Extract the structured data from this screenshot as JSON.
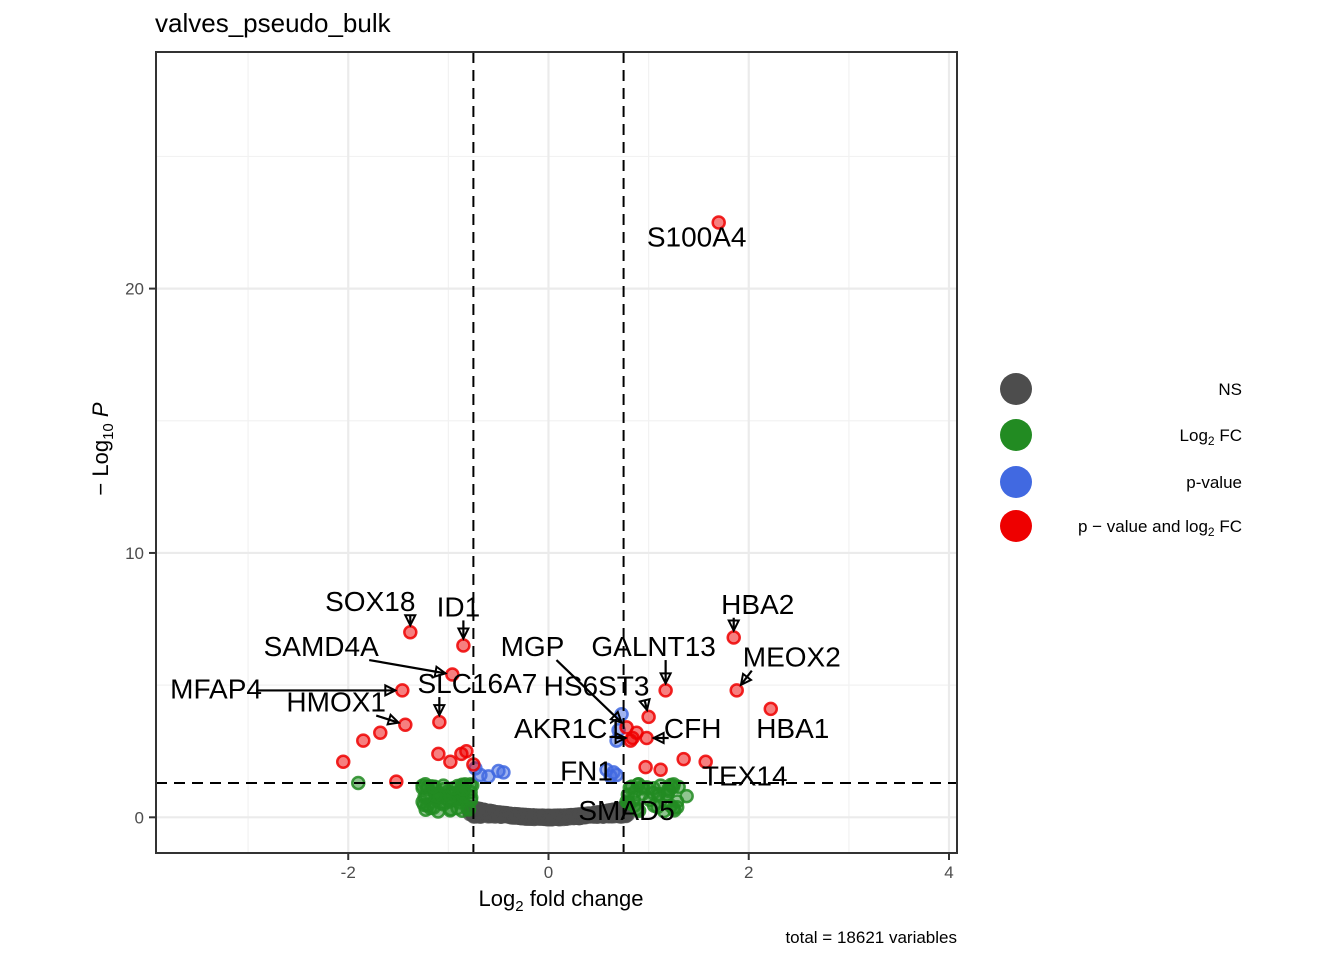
{
  "chart_data": {
    "type": "scatter",
    "title": "valves_pseudo_bulk",
    "caption": "total = 18621 variables",
    "x_axis": {
      "label_parts": [
        "Log",
        "2",
        " fold change"
      ],
      "ticks": [
        -2,
        0,
        2,
        4
      ],
      "tick_labels": [
        "-2",
        "0",
        "2",
        "4"
      ],
      "range": [
        -3.92,
        4.08
      ]
    },
    "y_axis": {
      "label_parts": [
        "− Log",
        "10",
        " P"
      ],
      "ticks": [
        0,
        10,
        20
      ],
      "tick_labels": [
        "0",
        "10",
        "20"
      ],
      "range": [
        -1.35,
        28.95
      ]
    },
    "grid": true,
    "cutoffs": {
      "fc": [
        -0.75,
        0.75
      ],
      "p": 1.3
    },
    "colors": {
      "NS": "#4d4d4d",
      "FC": "#228b22",
      "P": "#4169e1",
      "PFC": "#ee0000"
    },
    "legend": {
      "position": "right",
      "entries": [
        {
          "key": "NS",
          "color": "#4d4d4d",
          "parts": [
            "NS"
          ]
        },
        {
          "key": "FC",
          "color": "#228b22",
          "parts": [
            "Log",
            "2",
            " FC"
          ]
        },
        {
          "key": "P",
          "color": "#4169e1",
          "parts": [
            "p-value"
          ]
        },
        {
          "key": "PFC",
          "color": "#ee0000",
          "parts": [
            "p − value and log",
            "2",
            " FC"
          ]
        }
      ]
    },
    "labeled_genes": [
      {
        "gene": "S100A4",
        "x": 1.7,
        "y": 22.5,
        "lx": 1.48,
        "ly": 21.6
      },
      {
        "gene": "SOX18",
        "x": -1.38,
        "y": 7.0,
        "lx": -1.78,
        "ly": 7.8
      },
      {
        "gene": "ID1",
        "x": -0.85,
        "y": 6.5,
        "lx": -0.9,
        "ly": 7.6
      },
      {
        "gene": "SAMD4A",
        "x": -0.96,
        "y": 5.4,
        "lx": -2.27,
        "ly": 6.1
      },
      {
        "gene": "MFAP4",
        "x": -1.46,
        "y": 4.8,
        "lx": -3.32,
        "ly": 4.5
      },
      {
        "gene": "HMOX1",
        "x": -1.43,
        "y": 3.5,
        "lx": -2.12,
        "ly": 4.0
      },
      {
        "gene": "SLC16A7",
        "x": -1.09,
        "y": 3.6,
        "lx": -0.71,
        "ly": 4.7
      },
      {
        "gene": "HBA2",
        "x": 1.85,
        "y": 6.8,
        "lx": 2.09,
        "ly": 7.7
      },
      {
        "gene": "MEOX2",
        "x": 1.88,
        "y": 4.8,
        "lx": 2.43,
        "ly": 5.7
      },
      {
        "gene": "HBA1",
        "x": 2.22,
        "y": 4.1,
        "lx": 2.44,
        "ly": 3.0
      },
      {
        "gene": "MGP",
        "x": 0.78,
        "y": 3.4,
        "lx": -0.16,
        "ly": 6.1
      },
      {
        "gene": "GALNT13",
        "x": 1.17,
        "y": 4.8,
        "lx": 1.05,
        "ly": 6.1
      },
      {
        "gene": "HS6ST3",
        "x": 1.0,
        "y": 3.8,
        "lx": 0.48,
        "ly": 4.6
      },
      {
        "gene": "AKR1C1",
        "x": 0.84,
        "y": 3.0,
        "lx": 0.2,
        "ly": 3.0
      },
      {
        "gene": "CFH",
        "x": 0.98,
        "y": 3.0,
        "lx": 1.44,
        "ly": 3.0
      },
      {
        "gene": "TEX14",
        "x": 1.57,
        "y": 2.1,
        "lx": 1.96,
        "ly": 1.2
      },
      {
        "gene": "FN1",
        "x": 0.68,
        "y": 1.6,
        "lx": 0.38,
        "ly": 1.4
      },
      {
        "gene": "SMAD5",
        "x": 0.78,
        "y": 0.6,
        "lx": 0.78,
        "ly": -0.1
      }
    ],
    "extra_points": {
      "PFC": [
        [
          -2.05,
          2.1
        ],
        [
          -1.85,
          2.9
        ],
        [
          -1.68,
          3.2
        ],
        [
          -1.52,
          1.35
        ],
        [
          -1.1,
          2.4
        ],
        [
          -0.98,
          2.1
        ],
        [
          -0.87,
          2.4
        ],
        [
          -0.82,
          2.5
        ],
        [
          -0.75,
          2.0
        ],
        [
          1.35,
          2.2
        ],
        [
          1.12,
          1.8
        ],
        [
          0.97,
          1.9
        ],
        [
          0.82,
          2.9
        ],
        [
          0.88,
          3.2
        ]
      ],
      "FC": [
        [
          -1.9,
          1.3
        ],
        [
          -1.23,
          1.25
        ],
        [
          -1.15,
          1.15
        ],
        [
          -1.05,
          1.2
        ],
        [
          -0.95,
          1.1
        ],
        [
          -0.85,
          1.05
        ],
        [
          1.05,
          1.1
        ],
        [
          1.12,
          1.2
        ],
        [
          1.2,
          1.0
        ],
        [
          1.3,
          1.15
        ],
        [
          1.38,
          0.8
        ],
        [
          0.9,
          1.25
        ]
      ],
      "P": [
        [
          -0.73,
          1.85
        ],
        [
          -0.68,
          1.6
        ],
        [
          -0.5,
          1.75
        ],
        [
          -0.45,
          1.7
        ],
        [
          -0.6,
          1.55
        ],
        [
          0.58,
          1.8
        ],
        [
          0.65,
          1.7
        ],
        [
          0.7,
          3.3
        ],
        [
          0.73,
          3.9
        ],
        [
          0.68,
          2.9
        ],
        [
          0.62,
          1.55
        ]
      ]
    }
  }
}
